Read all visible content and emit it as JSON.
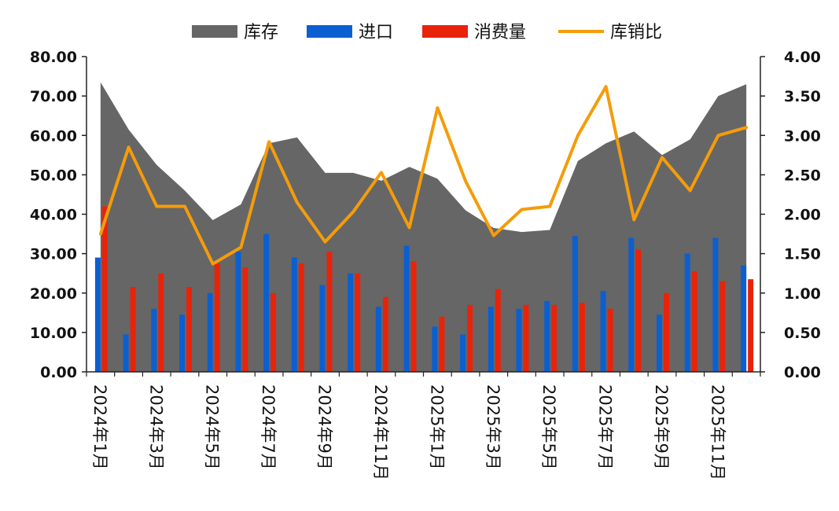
{
  "chart_data": {
    "type": "bar",
    "title": "",
    "categories": [
      "2024年1月",
      "2024年2月",
      "2024年3月",
      "2024年4月",
      "2024年5月",
      "2024年6月",
      "2024年7月",
      "2024年8月",
      "2024年9月",
      "2024年10月",
      "2024年11月",
      "2024年12月",
      "2025年1月",
      "2025年2月",
      "2025年3月",
      "2025年4月",
      "2025年5月",
      "2025年6月",
      "2025年7月",
      "2025年8月",
      "2025年9月",
      "2025年10月",
      "2025年11月",
      "2025年12月"
    ],
    "x_tick_labels": [
      "2024年1月",
      "",
      "2024年3月",
      "",
      "2024年5月",
      "",
      "2024年7月",
      "",
      "2024年9月",
      "",
      "2024年11月",
      "",
      "2025年1月",
      "",
      "2025年3月",
      "",
      "2025年5月",
      "",
      "2025年7月",
      "",
      "2025年9月",
      "",
      "2025年11月",
      ""
    ],
    "series": [
      {
        "name": "库存",
        "type": "area",
        "axis": "left",
        "color": "#666666",
        "values": [
          73.5,
          61.5,
          52.5,
          46,
          38.5,
          42.5,
          58,
          59.5,
          50.5,
          50.5,
          48.5,
          52,
          49,
          41,
          36.5,
          35.5,
          36,
          53.5,
          58,
          61,
          55,
          59,
          70,
          73
        ]
      },
      {
        "name": "进口",
        "type": "bar",
        "axis": "left",
        "color": "#0b5fd0",
        "values": [
          29,
          9.5,
          16,
          14.5,
          20,
          30.5,
          35,
          29,
          22,
          25,
          16.5,
          32,
          11.5,
          9.5,
          16.5,
          16,
          18,
          34.5,
          20.5,
          34,
          14.5,
          30,
          34,
          27
        ]
      },
      {
        "name": "消费量",
        "type": "bar",
        "axis": "left",
        "color": "#e8230a",
        "values": [
          42,
          21.5,
          25,
          21.5,
          27.5,
          26.5,
          20,
          27.5,
          30.5,
          25,
          19,
          28,
          14,
          17,
          21,
          17,
          17,
          17.5,
          16,
          31,
          20,
          25.5,
          23,
          23.5
        ]
      },
      {
        "name": "库销比",
        "type": "line",
        "axis": "right",
        "color": "#f59c0a",
        "values": [
          1.75,
          2.85,
          2.1,
          2.1,
          1.37,
          1.58,
          2.92,
          2.15,
          1.65,
          2.03,
          2.53,
          1.83,
          3.35,
          2.42,
          1.73,
          2.06,
          2.1,
          3.0,
          3.62,
          1.93,
          2.72,
          2.3,
          3.0,
          3.1
        ]
      }
    ],
    "y_left": {
      "ylim": [
        0,
        80
      ],
      "ticks": [
        "0.00",
        "10.00",
        "20.00",
        "30.00",
        "40.00",
        "50.00",
        "60.00",
        "70.00",
        "80.00"
      ]
    },
    "y_right": {
      "ylim": [
        0,
        4
      ],
      "ticks": [
        "0.00",
        "0.50",
        "1.00",
        "1.50",
        "2.00",
        "2.50",
        "3.00",
        "3.50",
        "4.00"
      ]
    },
    "legend": {
      "position": "top",
      "items": [
        "库存",
        "进口",
        "消费量",
        "库销比"
      ]
    },
    "grid": false
  }
}
